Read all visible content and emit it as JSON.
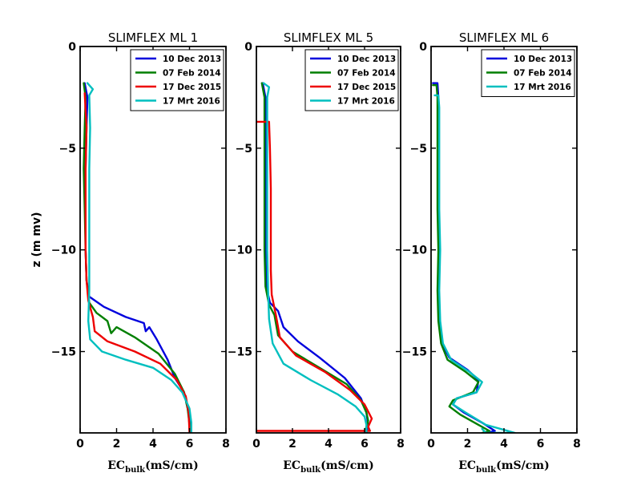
{
  "chart_data": [
    {
      "type": "line",
      "title": "SLIMFLEX ML 1",
      "xlabel": {
        "main": "EC",
        "sub": "bulk",
        "units": "(mS/cm)"
      },
      "ylabel": "z (m mv)",
      "xlim": [
        0,
        8
      ],
      "ylim": [
        -19,
        0
      ],
      "xticks": [
        0,
        2,
        4,
        6,
        8
      ],
      "yticks": [
        0,
        -5,
        -10,
        -15
      ],
      "ytick_labels": [
        "0",
        "−5",
        "−10",
        "−15"
      ],
      "series": [
        {
          "name": "10 Dec 2013",
          "color": "#0000dd",
          "points": [
            [
              0.25,
              -1.8
            ],
            [
              0.4,
              -2.5
            ],
            [
              0.35,
              -4
            ],
            [
              0.3,
              -6
            ],
            [
              0.3,
              -8
            ],
            [
              0.3,
              -10
            ],
            [
              0.35,
              -11.5
            ],
            [
              0.5,
              -12.3
            ],
            [
              1.3,
              -12.8
            ],
            [
              2.5,
              -13.3
            ],
            [
              3.5,
              -13.6
            ],
            [
              3.6,
              -14.0
            ],
            [
              3.8,
              -13.8
            ],
            [
              4.2,
              -14.4
            ],
            [
              4.8,
              -15.4
            ],
            [
              5.2,
              -16.3
            ],
            [
              5.7,
              -17
            ],
            [
              5.9,
              -17.8
            ],
            [
              6.05,
              -18.6
            ],
            [
              6.1,
              -19
            ]
          ]
        },
        {
          "name": "07 Feb 2014",
          "color": "#007f00",
          "points": [
            [
              0.2,
              -1.8
            ],
            [
              0.3,
              -2.5
            ],
            [
              0.25,
              -4
            ],
            [
              0.2,
              -6
            ],
            [
              0.25,
              -8
            ],
            [
              0.3,
              -10
            ],
            [
              0.35,
              -11.5
            ],
            [
              0.5,
              -12.6
            ],
            [
              0.9,
              -13.1
            ],
            [
              1.5,
              -13.5
            ],
            [
              1.7,
              -14.1
            ],
            [
              2.0,
              -13.8
            ],
            [
              3.0,
              -14.3
            ],
            [
              4.3,
              -15.1
            ],
            [
              5.2,
              -16.1
            ],
            [
              5.7,
              -17
            ],
            [
              5.9,
              -17.8
            ],
            [
              6.0,
              -18.6
            ],
            [
              6.05,
              -19
            ]
          ]
        },
        {
          "name": "17 Dec 2015",
          "color": "#ee0000",
          "points": [
            [
              0.25,
              -2.3
            ],
            [
              0.35,
              -4
            ],
            [
              0.3,
              -6
            ],
            [
              0.3,
              -8
            ],
            [
              0.3,
              -10
            ],
            [
              0.35,
              -11.5
            ],
            [
              0.45,
              -12.5
            ],
            [
              0.7,
              -13.3
            ],
            [
              0.8,
              -14.0
            ],
            [
              1.5,
              -14.5
            ],
            [
              3.0,
              -15.0
            ],
            [
              4.4,
              -15.6
            ],
            [
              5.3,
              -16.4
            ],
            [
              5.8,
              -17.2
            ],
            [
              5.95,
              -18
            ],
            [
              6.0,
              -19
            ]
          ]
        },
        {
          "name": "17 Mrt 2016",
          "color": "#00bfbf",
          "points": [
            [
              0.4,
              -1.8
            ],
            [
              0.7,
              -2.1
            ],
            [
              0.5,
              -2.4
            ],
            [
              0.55,
              -4
            ],
            [
              0.5,
              -6
            ],
            [
              0.5,
              -8
            ],
            [
              0.5,
              -10
            ],
            [
              0.5,
              -12
            ],
            [
              0.45,
              -13.5
            ],
            [
              0.55,
              -14.4
            ],
            [
              1.2,
              -15.0
            ],
            [
              2.5,
              -15.4
            ],
            [
              4.0,
              -15.8
            ],
            [
              5.0,
              -16.4
            ],
            [
              5.6,
              -17.0
            ],
            [
              6.0,
              -17.8
            ],
            [
              6.1,
              -18.5
            ],
            [
              6.1,
              -19
            ]
          ]
        }
      ]
    },
    {
      "type": "line",
      "title": "SLIMFLEX ML 5",
      "xlabel": {
        "main": "EC",
        "sub": "bulk",
        "units": "(mS/cm)"
      },
      "ylabel": "",
      "xlim": [
        0,
        8
      ],
      "ylim": [
        -19,
        0
      ],
      "xticks": [
        0,
        2,
        4,
        6,
        8
      ],
      "yticks": [
        0,
        -5,
        -10,
        -15
      ],
      "ytick_labels": [
        "0",
        "−5",
        "−10",
        "−15"
      ],
      "series": [
        {
          "name": "10 Dec 2013",
          "color": "#0000dd",
          "points": [
            [
              0.35,
              -1.8
            ],
            [
              0.5,
              -2.5
            ],
            [
              0.5,
              -4
            ],
            [
              0.5,
              -6
            ],
            [
              0.5,
              -8
            ],
            [
              0.5,
              -10
            ],
            [
              0.55,
              -11.8
            ],
            [
              0.75,
              -12.6
            ],
            [
              1.2,
              -13.0
            ],
            [
              1.5,
              -13.8
            ],
            [
              2.3,
              -14.5
            ],
            [
              3.5,
              -15.3
            ],
            [
              4.9,
              -16.3
            ],
            [
              5.8,
              -17.3
            ],
            [
              6.1,
              -18.0
            ],
            [
              6.2,
              -18.6
            ],
            [
              6.1,
              -19
            ]
          ]
        },
        {
          "name": "07 Feb 2014",
          "color": "#007f00",
          "points": [
            [
              0.3,
              -1.8
            ],
            [
              0.45,
              -2.5
            ],
            [
              0.45,
              -4
            ],
            [
              0.45,
              -6
            ],
            [
              0.45,
              -8
            ],
            [
              0.45,
              -10
            ],
            [
              0.5,
              -11.8
            ],
            [
              0.7,
              -12.7
            ],
            [
              1.0,
              -13.2
            ],
            [
              1.2,
              -14.2
            ],
            [
              2.0,
              -15.0
            ],
            [
              3.5,
              -15.8
            ],
            [
              5.0,
              -16.6
            ],
            [
              5.8,
              -17.4
            ],
            [
              6.1,
              -18.0
            ],
            [
              6.2,
              -18.4
            ],
            [
              6.0,
              -19
            ]
          ]
        },
        {
          "name": "17 Dec 2015",
          "color": "#ee0000",
          "points": [
            [
              0,
              -3.7
            ],
            [
              0.7,
              -3.7
            ],
            [
              0.75,
              -5
            ],
            [
              0.8,
              -7
            ],
            [
              0.8,
              -9
            ],
            [
              0.8,
              -11
            ],
            [
              0.85,
              -12.2
            ],
            [
              1.1,
              -13.3
            ],
            [
              1.3,
              -14.3
            ],
            [
              2.2,
              -15.2
            ],
            [
              3.8,
              -16.0
            ],
            [
              5.2,
              -16.9
            ],
            [
              6.0,
              -17.6
            ],
            [
              6.4,
              -18.3
            ],
            [
              6.2,
              -18.7
            ],
            [
              6.3,
              -18.9
            ],
            [
              0,
              -18.9
            ]
          ]
        },
        {
          "name": "17 Mrt 2016",
          "color": "#00bfbf",
          "points": [
            [
              0.4,
              -1.8
            ],
            [
              0.7,
              -2.0
            ],
            [
              0.6,
              -2.5
            ],
            [
              0.6,
              -4
            ],
            [
              0.6,
              -6
            ],
            [
              0.6,
              -8
            ],
            [
              0.6,
              -10
            ],
            [
              0.65,
              -12
            ],
            [
              0.7,
              -13.4
            ],
            [
              0.9,
              -14.6
            ],
            [
              1.5,
              -15.6
            ],
            [
              3.0,
              -16.4
            ],
            [
              4.5,
              -17.1
            ],
            [
              5.5,
              -17.7
            ],
            [
              6.0,
              -18.2
            ],
            [
              6.1,
              -18.6
            ],
            [
              6.1,
              -19
            ]
          ]
        }
      ]
    },
    {
      "type": "line",
      "title": "SLIMFLEX ML 6",
      "xlabel": {
        "main": "EC",
        "sub": "bulk",
        "units": "(mS/cm)"
      },
      "ylabel": "",
      "xlim": [
        0,
        8
      ],
      "ylim": [
        -19,
        0
      ],
      "xticks": [
        0,
        2,
        4,
        6,
        8
      ],
      "yticks": [
        0,
        -5,
        -10,
        -15
      ],
      "ytick_labels": [
        "0",
        "−5",
        "−10",
        "−15"
      ],
      "series": [
        {
          "name": "10 Dec 2013",
          "color": "#0000dd",
          "points": [
            [
              0.1,
              -1.8
            ],
            [
              0.35,
              -1.8
            ],
            [
              0.4,
              -2.5
            ],
            [
              0.4,
              -5
            ],
            [
              0.4,
              -8
            ],
            [
              0.45,
              -10
            ],
            [
              0.4,
              -12
            ],
            [
              0.45,
              -13.5
            ],
            [
              0.6,
              -14.6
            ],
            [
              1.0,
              -15.3
            ],
            [
              2.0,
              -15.9
            ],
            [
              2.6,
              -16.4
            ],
            [
              2.5,
              -17.0
            ],
            [
              1.4,
              -17.3
            ],
            [
              1.2,
              -17.6
            ],
            [
              1.8,
              -18.0
            ],
            [
              2.8,
              -18.5
            ],
            [
              3.5,
              -18.9
            ],
            [
              3.0,
              -19
            ]
          ]
        },
        {
          "name": "07 Feb 2014",
          "color": "#007f00",
          "points": [
            [
              0.1,
              -1.9
            ],
            [
              0.3,
              -1.9
            ],
            [
              0.35,
              -2.5
            ],
            [
              0.35,
              -5
            ],
            [
              0.35,
              -8
            ],
            [
              0.4,
              -10
            ],
            [
              0.35,
              -12
            ],
            [
              0.4,
              -13.5
            ],
            [
              0.55,
              -14.6
            ],
            [
              0.9,
              -15.4
            ],
            [
              1.9,
              -16.0
            ],
            [
              2.6,
              -16.5
            ],
            [
              2.3,
              -17.0
            ],
            [
              1.2,
              -17.4
            ],
            [
              1.0,
              -17.7
            ],
            [
              1.6,
              -18.1
            ],
            [
              2.6,
              -18.6
            ],
            [
              3.2,
              -18.9
            ],
            [
              2.8,
              -19
            ]
          ]
        },
        {
          "name": "17 Mrt 2016",
          "color": "#00bfbf",
          "points": [
            [
              0.2,
              -2.4
            ],
            [
              0.4,
              -2.4
            ],
            [
              0.45,
              -3
            ],
            [
              0.45,
              -5
            ],
            [
              0.45,
              -8
            ],
            [
              0.5,
              -10
            ],
            [
              0.45,
              -12
            ],
            [
              0.5,
              -13.5
            ],
            [
              0.65,
              -14.6
            ],
            [
              1.1,
              -15.4
            ],
            [
              2.1,
              -16.0
            ],
            [
              2.8,
              -16.5
            ],
            [
              2.5,
              -17.0
            ],
            [
              1.4,
              -17.3
            ],
            [
              1.2,
              -17.6
            ],
            [
              1.9,
              -18.0
            ],
            [
              3.0,
              -18.6
            ],
            [
              4.6,
              -19.0
            ],
            [
              3.0,
              -19.0
            ],
            [
              2.8,
              -18.8
            ]
          ]
        }
      ]
    }
  ]
}
